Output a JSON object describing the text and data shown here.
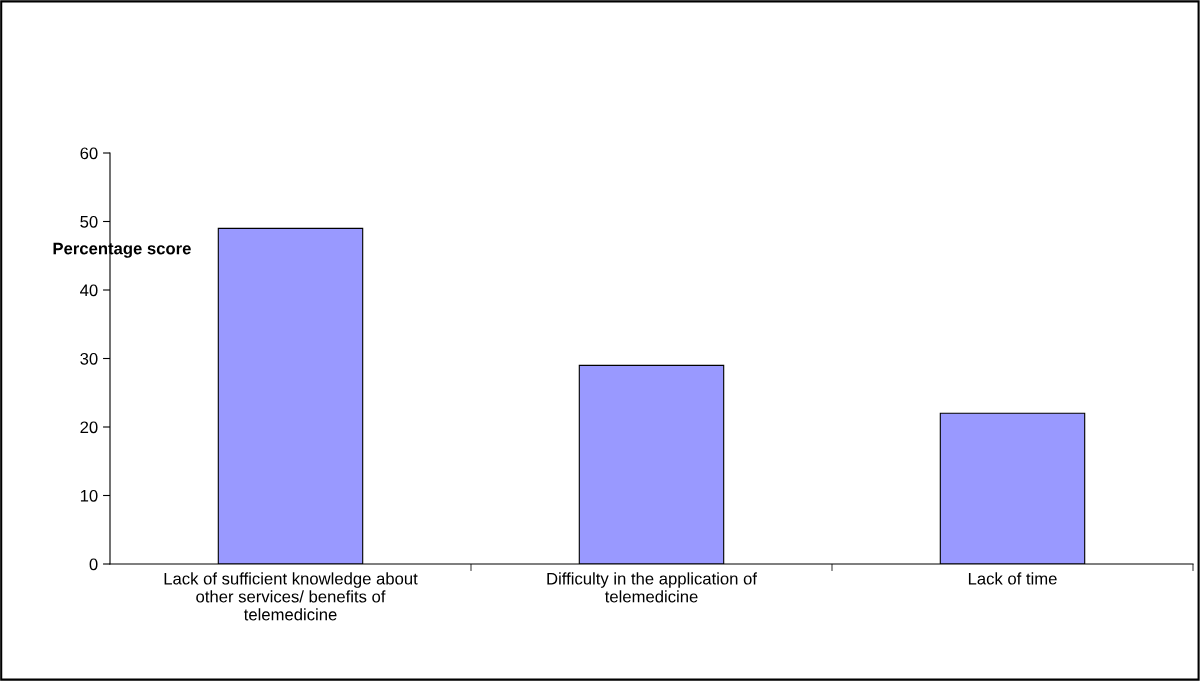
{
  "chart_data": {
    "type": "bar",
    "ylabel": "Percentage score",
    "categories": [
      "Lack of sufficient knowledge about\nother services/ benefits of\ntelemedicine",
      "Difficulty in the application of\ntelemedicine",
      "Lack of time"
    ],
    "values": [
      49,
      29,
      22
    ],
    "color": "#9999ff",
    "ylim": [
      0,
      60
    ],
    "yticks": [
      0,
      10,
      20,
      30,
      40,
      50,
      60
    ],
    "grid": false,
    "legend": false
  }
}
